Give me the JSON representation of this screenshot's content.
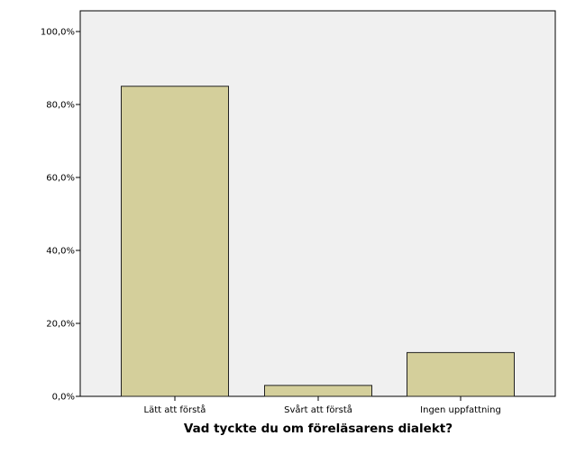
{
  "chart_data": {
    "type": "bar",
    "title": "",
    "xlabel": "Vad tyckte du om föreläsarens dialekt?",
    "ylabel": "",
    "categories": [
      "Lätt att förstå",
      "Svårt att förstå",
      "Ingen uppfattning"
    ],
    "values": [
      85.0,
      3.0,
      12.0
    ],
    "ylim": [
      0,
      100
    ],
    "yticks": [
      0,
      20,
      40,
      60,
      80,
      100
    ],
    "ytick_labels": [
      "0,0%",
      "20,0%",
      "40,0%",
      "60,0%",
      "80,0%",
      "100,0%"
    ],
    "grid": false,
    "legend": "none",
    "colors": {
      "bar_fill": "#d4cf9b",
      "bar_stroke": "#222222",
      "plot_background": "#f0f0f0",
      "page_background": "#ffffff"
    }
  }
}
